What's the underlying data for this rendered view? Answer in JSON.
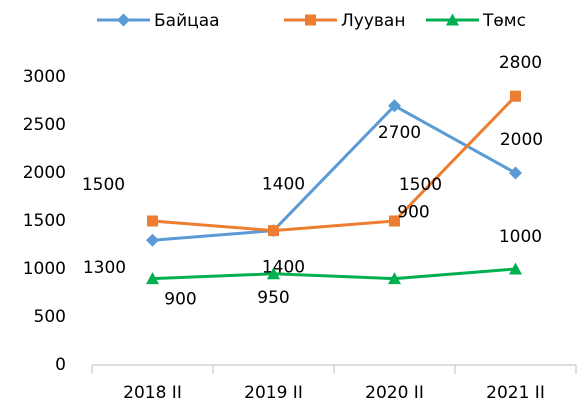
{
  "chart_data": {
    "type": "line",
    "categories": [
      "2018 II",
      "2019 II",
      "2020 II",
      "2021 II"
    ],
    "series": [
      {
        "name": "Байцаа",
        "color": "#5b9bd5",
        "marker": "diamond",
        "values": [
          1300,
          1400,
          2700,
          2000
        ]
      },
      {
        "name": "Лууван",
        "color": "#ed7d31",
        "marker": "square",
        "values": [
          1500,
          1400,
          1500,
          2800
        ]
      },
      {
        "name": "Төмс",
        "color": "#00b050",
        "marker": "triangle",
        "values": [
          900,
          950,
          900,
          1000
        ]
      }
    ],
    "ylim": [
      0,
      3000
    ],
    "yticks": [
      0,
      500,
      1000,
      1500,
      2000,
      2500,
      3000
    ],
    "grid": false,
    "legend": "top",
    "data_labels": true
  }
}
